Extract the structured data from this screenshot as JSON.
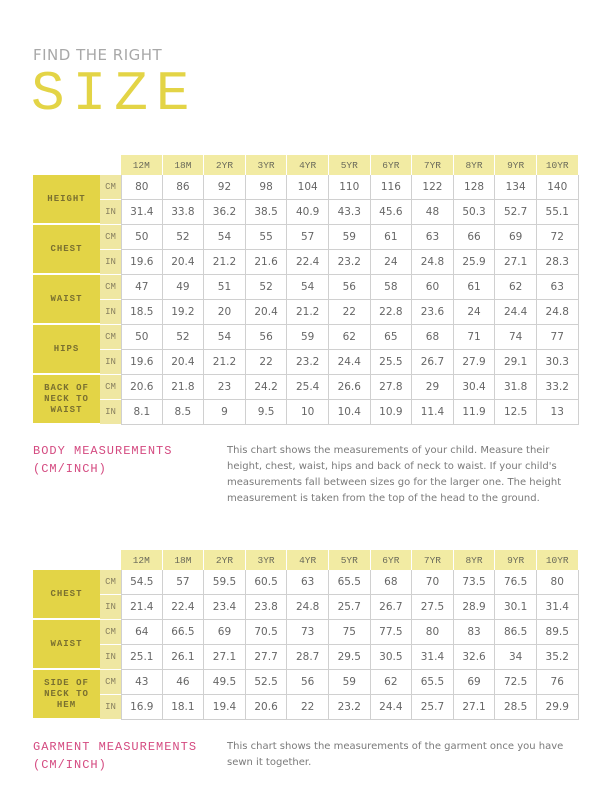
{
  "header": {
    "kicker": "FIND THE RIGHT",
    "title": "SIZE"
  },
  "colors": {
    "accent": "#e3d446",
    "header_bg": "#f2eba3",
    "unit_bg": "#efe7a2",
    "title_pink": "#d44a80"
  },
  "sizes": [
    "12M",
    "18M",
    "2YR",
    "3YR",
    "4YR",
    "5YR",
    "6YR",
    "7YR",
    "8YR",
    "9YR",
    "10YR"
  ],
  "body": {
    "title_line1": "BODY MEASUREMENTS",
    "title_line2": "(CM/INCH)",
    "description": "This chart shows the measurements of your child. Measure their height, chest, waist, hips and back of neck to waist. If your child's measurements fall between sizes go for the larger one. The height measurement is taken from the top of the head to the ground.",
    "rows": [
      {
        "label": "HEIGHT",
        "cm": [
          "80",
          "86",
          "92",
          "98",
          "104",
          "110",
          "116",
          "122",
          "128",
          "134",
          "140"
        ],
        "in": [
          "31.4",
          "33.8",
          "36.2",
          "38.5",
          "40.9",
          "43.3",
          "45.6",
          "48",
          "50.3",
          "52.7",
          "55.1"
        ]
      },
      {
        "label": "CHEST",
        "cm": [
          "50",
          "52",
          "54",
          "55",
          "57",
          "59",
          "61",
          "63",
          "66",
          "69",
          "72"
        ],
        "in": [
          "19.6",
          "20.4",
          "21.2",
          "21.6",
          "22.4",
          "23.2",
          "24",
          "24.8",
          "25.9",
          "27.1",
          "28.3"
        ]
      },
      {
        "label": "WAIST",
        "cm": [
          "47",
          "49",
          "51",
          "52",
          "54",
          "56",
          "58",
          "60",
          "61",
          "62",
          "63"
        ],
        "in": [
          "18.5",
          "19.2",
          "20",
          "20.4",
          "21.2",
          "22",
          "22.8",
          "23.6",
          "24",
          "24.4",
          "24.8"
        ]
      },
      {
        "label": "HIPS",
        "cm": [
          "50",
          "52",
          "54",
          "56",
          "59",
          "62",
          "65",
          "68",
          "71",
          "74",
          "77"
        ],
        "in": [
          "19.6",
          "20.4",
          "21.2",
          "22",
          "23.2",
          "24.4",
          "25.5",
          "26.7",
          "27.9",
          "29.1",
          "30.3"
        ]
      },
      {
        "label": "BACK OF NECK TO WAIST",
        "cm": [
          "20.6",
          "21.8",
          "23",
          "24.2",
          "25.4",
          "26.6",
          "27.8",
          "29",
          "30.4",
          "31.8",
          "33.2"
        ],
        "in": [
          "8.1",
          "8.5",
          "9",
          "9.5",
          "10",
          "10.4",
          "10.9",
          "11.4",
          "11.9",
          "12.5",
          "13"
        ]
      }
    ]
  },
  "garment": {
    "title_line1": "GARMENT MEASUREMENTS",
    "title_line2": "(CM/INCH)",
    "description": "This chart shows the measurements of the garment once you have sewn it together.",
    "rows": [
      {
        "label": "CHEST",
        "cm": [
          "54.5",
          "57",
          "59.5",
          "60.5",
          "63",
          "65.5",
          "68",
          "70",
          "73.5",
          "76.5",
          "80"
        ],
        "in": [
          "21.4",
          "22.4",
          "23.4",
          "23.8",
          "24.8",
          "25.7",
          "26.7",
          "27.5",
          "28.9",
          "30.1",
          "31.4"
        ]
      },
      {
        "label": "WAIST",
        "cm": [
          "64",
          "66.5",
          "69",
          "70.5",
          "73",
          "75",
          "77.5",
          "80",
          "83",
          "86.5",
          "89.5"
        ],
        "in": [
          "25.1",
          "26.1",
          "27.1",
          "27.7",
          "28.7",
          "29.5",
          "30.5",
          "31.4",
          "32.6",
          "34",
          "35.2"
        ]
      },
      {
        "label": "SIDE OF NECK TO HEM",
        "cm": [
          "43",
          "46",
          "49.5",
          "52.5",
          "56",
          "59",
          "62",
          "65.5",
          "69",
          "72.5",
          "76"
        ],
        "in": [
          "16.9",
          "18.1",
          "19.4",
          "20.6",
          "22",
          "23.2",
          "24.4",
          "25.7",
          "27.1",
          "28.5",
          "29.9"
        ]
      }
    ]
  },
  "units": {
    "cm": "CM",
    "in": "IN"
  }
}
